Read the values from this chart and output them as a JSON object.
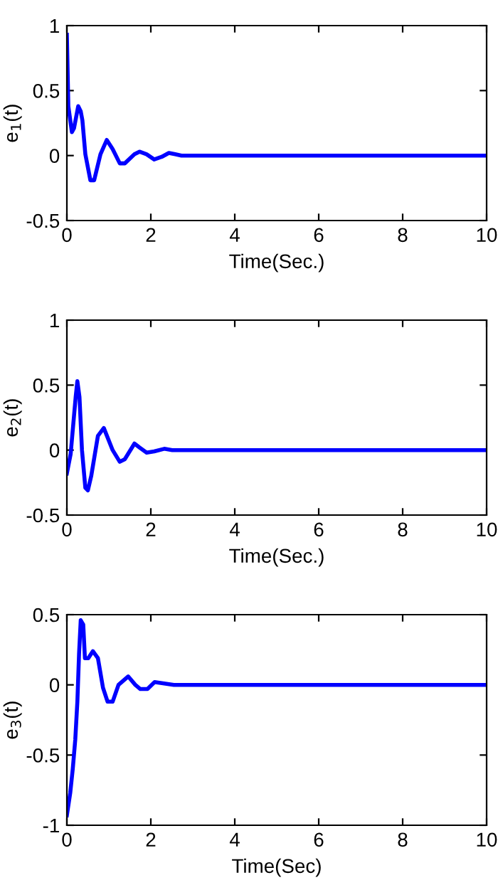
{
  "chart_data": [
    {
      "type": "line",
      "xlabel": "Time(Sec.)",
      "ylabel": "e$_{1}$(t)",
      "xlim": [
        0,
        10
      ],
      "ylim": [
        -0.5,
        1
      ],
      "xticks": [
        0,
        2,
        4,
        6,
        8,
        10
      ],
      "yticks": [
        -0.5,
        0,
        0.5,
        1
      ],
      "grid": false,
      "legend": false,
      "series": [
        {
          "color": "#0000ff",
          "x": [
            0,
            0.035,
            0.12,
            0.17,
            0.27,
            0.33,
            0.37,
            0.44,
            0.56,
            0.65,
            0.8,
            0.95,
            1.09,
            1.26,
            1.38,
            1.61,
            1.73,
            1.9,
            2.08,
            2.26,
            2.43,
            2.58,
            2.73,
            10
          ],
          "values": [
            0.93,
            0.38,
            0.18,
            0.21,
            0.38,
            0.34,
            0.27,
            0.01,
            -0.19,
            -0.19,
            0.01,
            0.12,
            0.05,
            -0.06,
            -0.06,
            0.01,
            0.03,
            0.01,
            -0.03,
            -0.01,
            0.02,
            0.01,
            0,
            0
          ]
        }
      ]
    },
    {
      "type": "line",
      "xlabel": "Time(Sec.)",
      "ylabel": "e$_{2}$(t)",
      "xlim": [
        0,
        10
      ],
      "ylim": [
        -0.5,
        1
      ],
      "xticks": [
        0,
        2,
        4,
        6,
        8,
        10
      ],
      "yticks": [
        -0.5,
        0,
        0.5,
        1
      ],
      "grid": false,
      "legend": false,
      "series": [
        {
          "color": "#0000ff",
          "x": [
            0,
            0.09,
            0.15,
            0.21,
            0.25,
            0.3,
            0.36,
            0.44,
            0.5,
            0.58,
            0.74,
            0.88,
            1.09,
            1.26,
            1.38,
            1.61,
            1.73,
            1.9,
            2.08,
            2.32,
            2.51,
            2.6,
            10
          ],
          "values": [
            -0.18,
            -0.03,
            0.19,
            0.41,
            0.53,
            0.41,
            0,
            -0.29,
            -0.31,
            -0.2,
            0.11,
            0.17,
            0,
            -0.09,
            -0.07,
            0.05,
            0.02,
            -0.02,
            -0.01,
            0.01,
            0,
            0,
            0
          ]
        }
      ]
    },
    {
      "type": "line",
      "xlabel": "Time(Sec)",
      "ylabel": "e$_{3}$(t)",
      "xlim": [
        0,
        10
      ],
      "ylim": [
        -1,
        0.5
      ],
      "xticks": [
        0,
        2,
        4,
        6,
        8,
        10
      ],
      "yticks": [
        -1,
        -0.5,
        0,
        0.5
      ],
      "grid": false,
      "legend": false,
      "series": [
        {
          "color": "#0000ff",
          "x": [
            0,
            0.08,
            0.14,
            0.2,
            0.25,
            0.29,
            0.33,
            0.39,
            0.43,
            0.51,
            0.62,
            0.74,
            0.86,
            0.97,
            1.09,
            1.23,
            1.46,
            1.63,
            1.75,
            1.92,
            2.09,
            2.32,
            2.55,
            10
          ],
          "values": [
            -0.93,
            -0.77,
            -0.6,
            -0.39,
            -0.12,
            0.22,
            0.46,
            0.43,
            0.19,
            0.19,
            0.24,
            0.19,
            -0.02,
            -0.12,
            -0.12,
            0,
            0.06,
            0,
            -0.03,
            -0.03,
            0.02,
            0.01,
            0,
            0
          ]
        }
      ]
    }
  ]
}
